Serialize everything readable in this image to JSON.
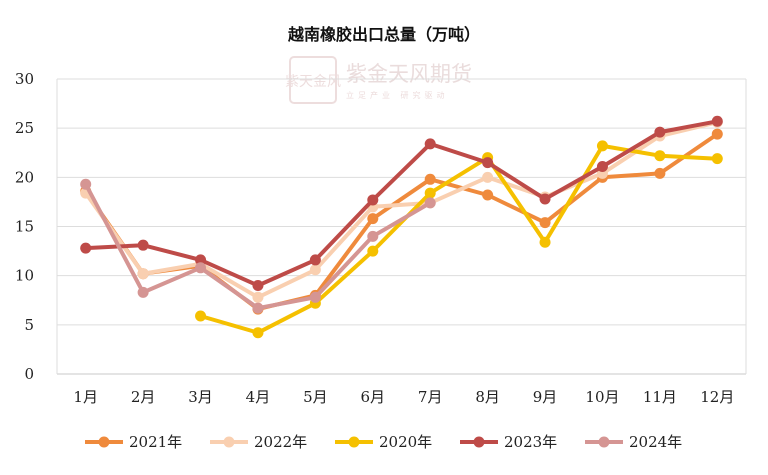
{
  "watermark": {
    "seal": "紫天金风",
    "name": "紫金天风期货",
    "slogan": "立足产业 研究驱动"
  },
  "chart_data": {
    "type": "line",
    "title": "越南橡胶出口总量（万吨）",
    "xlabel": "",
    "ylabel": "",
    "categories": [
      "1月",
      "2月",
      "3月",
      "4月",
      "5月",
      "6月",
      "7月",
      "8月",
      "9月",
      "10月",
      "11月",
      "12月"
    ],
    "ylim": [
      0,
      30
    ],
    "yticks": [
      0,
      5,
      10,
      15,
      20,
      25,
      30
    ],
    "grid": true,
    "legend_position": "bottom",
    "series": [
      {
        "name": "2021年",
        "color": "#ef8a3c",
        "values": [
          18.6,
          10.2,
          11.0,
          6.6,
          8.0,
          15.8,
          19.8,
          18.2,
          15.4,
          20.0,
          20.4,
          24.4
        ]
      },
      {
        "name": "2022年",
        "color": "#f9cfb0",
        "values": [
          18.4,
          10.2,
          11.2,
          7.8,
          10.6,
          17.0,
          17.4,
          20.0,
          18.0,
          20.4,
          24.2,
          25.6
        ]
      },
      {
        "name": "2020年",
        "color": "#f5c000",
        "values": [
          null,
          null,
          5.9,
          4.2,
          7.2,
          12.5,
          18.4,
          22.0,
          13.4,
          23.2,
          22.2,
          21.9
        ]
      },
      {
        "name": "2023年",
        "color": "#be4b48",
        "values": [
          12.8,
          13.1,
          11.6,
          9.0,
          11.6,
          17.7,
          23.4,
          21.5,
          17.8,
          21.1,
          24.6,
          25.7
        ]
      },
      {
        "name": "2024年",
        "color": "#d59593",
        "values": [
          19.3,
          8.3,
          10.8,
          6.7,
          7.8,
          14.0,
          17.4,
          null,
          null,
          null,
          null,
          null
        ]
      }
    ]
  }
}
